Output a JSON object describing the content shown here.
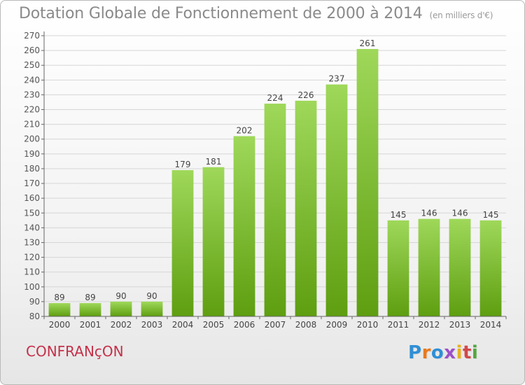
{
  "header": {
    "title": "Dotation Globale de Fonctionnement de 2000 à 2014",
    "units": "(en milliers d'€)"
  },
  "footer": {
    "place": "CONFRANçON",
    "logo": {
      "letters": [
        "P",
        "r",
        "o",
        "x",
        "i",
        "t",
        "i"
      ],
      "colors": [
        "#2f8fd6",
        "#e87a1d",
        "#2f8fd6",
        "#9c4fc9",
        "#e8b21d",
        "#d24848",
        "#52a83c"
      ]
    }
  },
  "chart_data": {
    "type": "bar",
    "categories": [
      "2000",
      "2001",
      "2002",
      "2003",
      "2004",
      "2005",
      "2006",
      "2007",
      "2008",
      "2009",
      "2010",
      "2011",
      "2012",
      "2013",
      "2014"
    ],
    "values": [
      89,
      89,
      90,
      90,
      179,
      181,
      202,
      224,
      226,
      237,
      261,
      145,
      146,
      146,
      145
    ],
    "ylim": [
      80,
      270
    ],
    "ytick_step": 10,
    "grid": true,
    "colors": {
      "bar_top": "#9fd85a",
      "bar_bottom": "#5e9e10",
      "grid": "#d6d6d6",
      "axis": "#666666"
    }
  }
}
